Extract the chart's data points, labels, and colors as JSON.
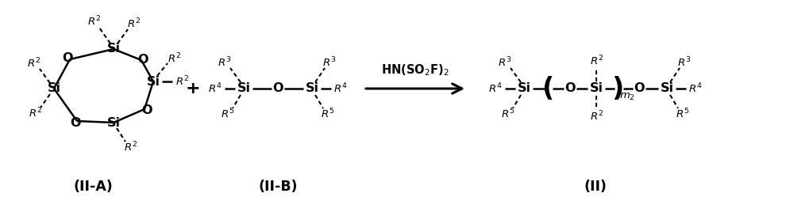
{
  "figsize": [
    10.0,
    2.68
  ],
  "dpi": 100,
  "bg_color": "#ffffff",
  "label_IIA": "(II-A)",
  "label_IIB": "(II-B)",
  "label_II": "(II)",
  "font_size_main": 11.5,
  "font_size_sub": 9.5,
  "font_size_label": 12.5,
  "font_size_plus": 16,
  "font_size_paren": 24
}
